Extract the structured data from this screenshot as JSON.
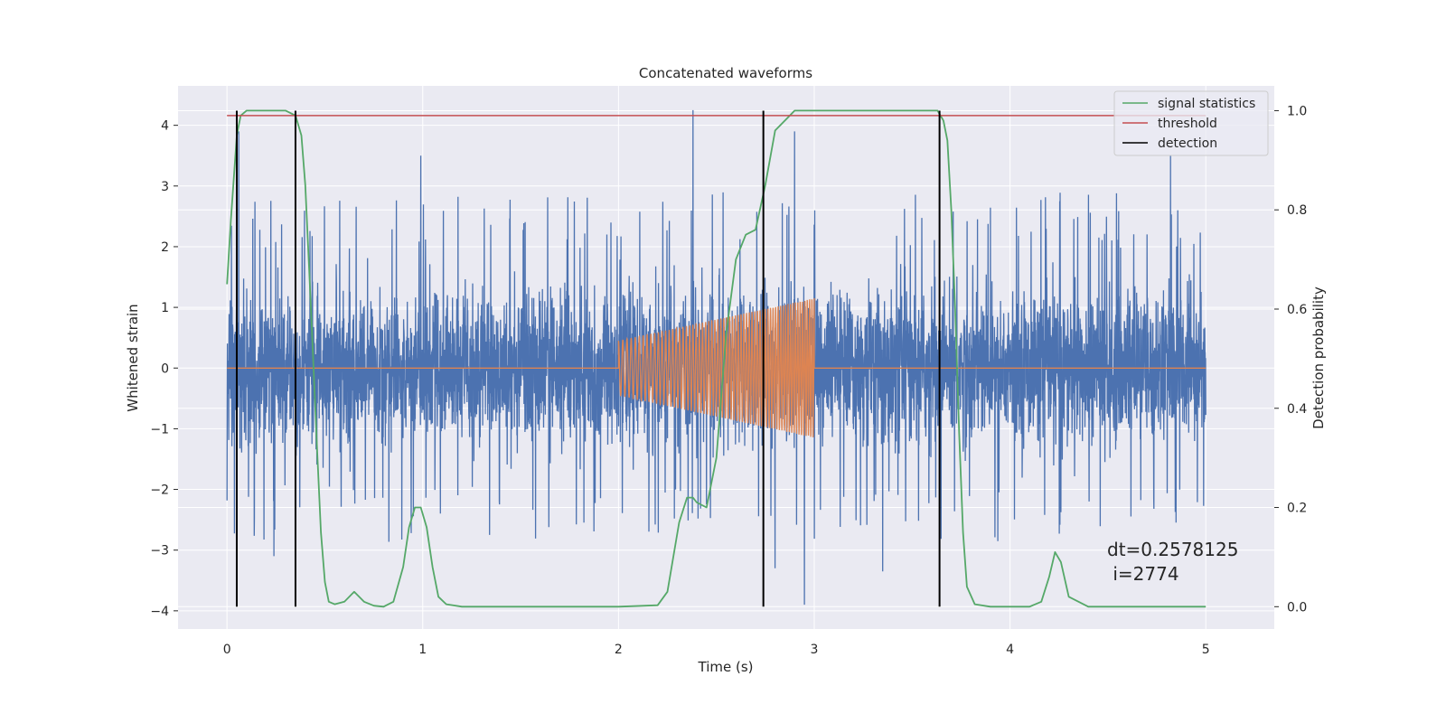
{
  "chart_data": {
    "type": "line",
    "title": "Concatenated waveforms",
    "xlabel": "Time (s)",
    "ylabel": "Whitened strain",
    "y2label": "Detection probability",
    "xlim": [
      -0.25,
      5.35
    ],
    "ylim": [
      -4.3,
      4.65
    ],
    "y2lim": [
      -0.045,
      1.05
    ],
    "xticks": [
      0,
      1,
      2,
      3,
      4,
      5
    ],
    "yticks": [
      -4,
      -3,
      -2,
      -1,
      0,
      1,
      2,
      3,
      4
    ],
    "y2ticks": [
      0.0,
      0.2,
      0.4,
      0.6,
      0.8,
      1.0
    ],
    "xtick_labels": [
      "0",
      "1",
      "2",
      "3",
      "4",
      "5"
    ],
    "ytick_labels": [
      "−4",
      "−3",
      "−2",
      "−1",
      "0",
      "1",
      "2",
      "3",
      "4"
    ],
    "y2tick_labels": [
      "0.0",
      "0.2",
      "0.4",
      "0.6",
      "0.8",
      "1.0"
    ],
    "grid": true,
    "legend_position": "top-right",
    "colors": {
      "strain": "#4c72b0",
      "injection": "#dd8452",
      "signal_statistics": "#55a868",
      "threshold": "#c44e52",
      "detection": "#000000",
      "plot_bg": "#eaeaf2",
      "grid": "#ffffff"
    },
    "strain": {
      "x_range": [
        0,
        5
      ],
      "noise_amplitude": 0.6,
      "visible_extremes": [
        {
          "x": 2.38,
          "y": 4.25
        },
        {
          "x": 0.06,
          "y": 3.9
        },
        {
          "x": 0.99,
          "y": 3.5
        },
        {
          "x": 2.9,
          "y": 3.9
        },
        {
          "x": 4.82,
          "y": 3.5
        },
        {
          "x": 2.95,
          "y": -3.9
        },
        {
          "x": 2.8,
          "y": -3.3
        },
        {
          "x": 0.24,
          "y": -3.1
        },
        {
          "x": 3.35,
          "y": -3.35
        }
      ]
    },
    "injection": {
      "x_range": [
        2,
        3
      ],
      "start_amplitude": 0.45,
      "end_amplitude": 1.15
    },
    "series": [
      {
        "name": "signal statistics",
        "axis": "right",
        "x": [
          0.0,
          0.02,
          0.05,
          0.07,
          0.1,
          0.2,
          0.3,
          0.35,
          0.38,
          0.4,
          0.42,
          0.44,
          0.46,
          0.48,
          0.5,
          0.52,
          0.55,
          0.6,
          0.65,
          0.7,
          0.75,
          0.8,
          0.85,
          0.9,
          0.93,
          0.96,
          0.99,
          1.02,
          1.05,
          1.08,
          1.12,
          1.2,
          1.5,
          2.0,
          2.2,
          2.25,
          2.28,
          2.31,
          2.35,
          2.38,
          2.4,
          2.45,
          2.5,
          2.55,
          2.6,
          2.65,
          2.7,
          2.75,
          2.8,
          2.9,
          3.0,
          3.3,
          3.5,
          3.63,
          3.66,
          3.68,
          3.7,
          3.72,
          3.74,
          3.76,
          3.78,
          3.82,
          3.9,
          4.0,
          4.1,
          4.16,
          4.2,
          4.23,
          4.26,
          4.3,
          4.4,
          4.6,
          5.0
        ],
        "y": [
          0.65,
          0.78,
          0.95,
          0.99,
          1.0,
          1.0,
          1.0,
          0.99,
          0.95,
          0.85,
          0.68,
          0.5,
          0.32,
          0.15,
          0.05,
          0.01,
          0.005,
          0.01,
          0.03,
          0.01,
          0.002,
          0.0,
          0.01,
          0.08,
          0.16,
          0.2,
          0.2,
          0.16,
          0.08,
          0.02,
          0.005,
          0.0,
          0.0,
          0.0,
          0.003,
          0.03,
          0.1,
          0.17,
          0.22,
          0.22,
          0.21,
          0.2,
          0.3,
          0.55,
          0.7,
          0.75,
          0.76,
          0.85,
          0.96,
          1.0,
          1.0,
          1.0,
          1.0,
          1.0,
          0.98,
          0.94,
          0.8,
          0.6,
          0.35,
          0.15,
          0.04,
          0.005,
          0.0,
          0.0,
          0.0,
          0.01,
          0.06,
          0.11,
          0.09,
          0.02,
          0.0,
          0.0,
          0.0
        ]
      },
      {
        "name": "threshold",
        "axis": "right",
        "x": [
          0,
          5
        ],
        "y": [
          0.99,
          0.99
        ]
      },
      {
        "name": "detection",
        "axis": "right",
        "type": "vlines",
        "x": [
          0.05,
          0.35,
          2.74,
          3.64
        ],
        "ymin": 0.0,
        "ymax": 1.0
      }
    ],
    "annotations": [
      {
        "text": "dt=0.2578125",
        "x": 4.5,
        "y": -3.0
      },
      {
        "text": " i=2774",
        "x": 4.5,
        "y": -3.4
      }
    ]
  }
}
